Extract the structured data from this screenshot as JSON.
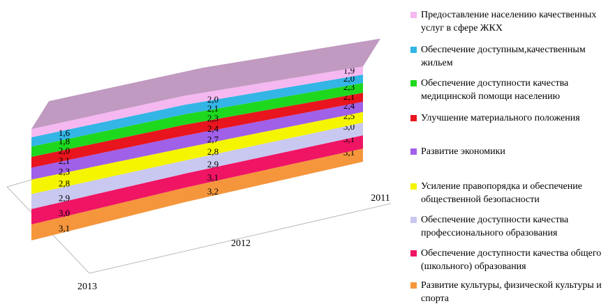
{
  "chart_data": {
    "type": "area3d_stacked",
    "categories": [
      "2013",
      "2012",
      "2011"
    ],
    "series": [
      {
        "name": "Предоставление населению качественных услуг в сфере ЖКХ",
        "color": "#f5b8f0",
        "values": [
          1.6,
          2.0,
          1.9
        ],
        "value_labels": [
          "1,6",
          "2,0",
          "1,9"
        ]
      },
      {
        "name": "Обеспечение доступным,качественным жильем",
        "color": "#33b5e5",
        "values": [
          1.8,
          2.1,
          2.0
        ],
        "value_labels": [
          "1,8",
          "2,1",
          "2,0"
        ]
      },
      {
        "name": "Обеспечение доступности качества медицинской помощи населению",
        "color": "#1ed81e",
        "values": [
          2.0,
          2.3,
          2.3
        ],
        "value_labels": [
          "2,0",
          "2,3",
          "2,3"
        ]
      },
      {
        "name": "Улучшение материального положения",
        "color": "#e8141e",
        "values": [
          2.1,
          2.4,
          2.1
        ],
        "value_labels": [
          "2,1",
          "2,4",
          "2,1"
        ]
      },
      {
        "name": "Развитие экономики",
        "color": "#a060e8",
        "values": [
          2.3,
          2.7,
          2.4
        ],
        "value_labels": [
          "2,3",
          "2,7",
          "2,4"
        ]
      },
      {
        "name": "Усиление правопорядка и обеспечение общественной безопасности",
        "color": "#f5f500",
        "values": [
          2.8,
          2.8,
          2.5
        ],
        "value_labels": [
          "2,8",
          "2,8",
          "2,5"
        ]
      },
      {
        "name": "Обеспечение доступности качества профессионального образования",
        "color": "#c8c8f0",
        "values": [
          2.9,
          2.9,
          3.0
        ],
        "value_labels": [
          "2,9",
          "2,9",
          "3,0"
        ]
      },
      {
        "name": "Обеспечение доступности качества общего (школьного) образования",
        "color": "#f01464",
        "values": [
          3.0,
          3.1,
          3.1
        ],
        "value_labels": [
          "3,0",
          "3,1",
          "3,1"
        ]
      },
      {
        "name": "Развитие культуры, физической культуры и спорта",
        "color": "#f5963c",
        "values": [
          3.1,
          3.2,
          3.1
        ],
        "value_labels": [
          "3,1",
          "3,2",
          "3,1"
        ]
      }
    ],
    "top_color": "#c09ac0"
  }
}
